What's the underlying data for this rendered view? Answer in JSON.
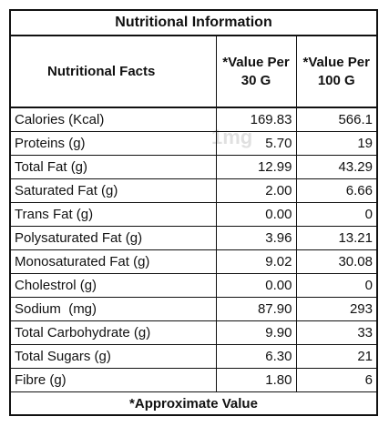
{
  "table": {
    "title": "Nutritional Information",
    "header": [
      "Nutritional Facts",
      "*Value Per 30 G",
      "*Value Per 100 G"
    ],
    "rows": [
      [
        "Calories (Kcal)",
        "169.83",
        "566.1"
      ],
      [
        "Proteins (g)",
        "5.70",
        "19"
      ],
      [
        "Total Fat (g)",
        "12.99",
        "43.29"
      ],
      [
        "Saturated Fat (g)",
        "2.00",
        "6.66"
      ],
      [
        "Trans Fat (g)",
        "0.00",
        "0"
      ],
      [
        "Polysaturated Fat (g)",
        "3.96",
        "13.21"
      ],
      [
        "Monosaturated Fat (g)",
        "9.02",
        "30.08"
      ],
      [
        "Cholestrol (g)",
        "0.00",
        "0"
      ],
      [
        "Sodium  (mg)",
        "87.90",
        "293"
      ],
      [
        "Total Carbohydrate (g)",
        "9.90",
        "33"
      ],
      [
        "Total Sugars (g)",
        "6.30",
        "21"
      ],
      [
        "Fibre (g)",
        "1.80",
        "6"
      ]
    ],
    "footer": "*Approximate Value",
    "watermark": "1mg"
  }
}
